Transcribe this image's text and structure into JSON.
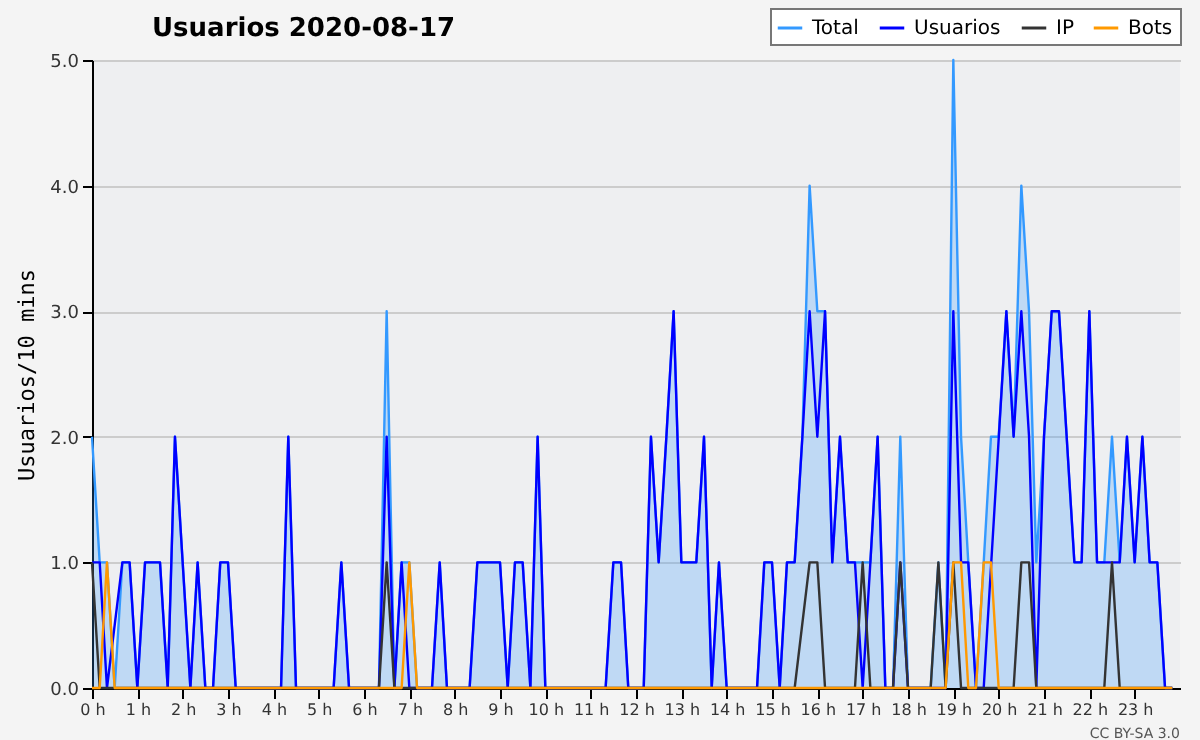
{
  "chart_data": {
    "type": "line",
    "title": "Usuarios  2020-08-17",
    "ylabel": "Usuarios/10 mins",
    "annotations": [
      "CC BY-SA 3.0"
    ],
    "xlim": [
      0,
      24
    ],
    "ylim": [
      0,
      5
    ],
    "xticks": [
      {
        "value": 0,
        "label": "0 h"
      },
      {
        "value": 1,
        "label": "1 h"
      },
      {
        "value": 2,
        "label": "2 h"
      },
      {
        "value": 3,
        "label": "3 h"
      },
      {
        "value": 4,
        "label": "4 h"
      },
      {
        "value": 5,
        "label": "5 h"
      },
      {
        "value": 6,
        "label": "6 h"
      },
      {
        "value": 7,
        "label": "7 h"
      },
      {
        "value": 8,
        "label": "8 h"
      },
      {
        "value": 9,
        "label": "9 h"
      },
      {
        "value": 10,
        "label": "10 h"
      },
      {
        "value": 11,
        "label": "11 h"
      },
      {
        "value": 12,
        "label": "12 h"
      },
      {
        "value": 13,
        "label": "13 h"
      },
      {
        "value": 14,
        "label": "14 h"
      },
      {
        "value": 15,
        "label": "15 h"
      },
      {
        "value": 16,
        "label": "16 h"
      },
      {
        "value": 17,
        "label": "17 h"
      },
      {
        "value": 18,
        "label": "18 h"
      },
      {
        "value": 19,
        "label": "19 h"
      },
      {
        "value": 20,
        "label": "20 h"
      },
      {
        "value": 21,
        "label": "21 h"
      },
      {
        "value": 22,
        "label": "22 h"
      },
      {
        "value": 23,
        "label": "23 h"
      }
    ],
    "yticks": [
      {
        "value": 0,
        "label": "0.0"
      },
      {
        "value": 1,
        "label": "1.0"
      },
      {
        "value": 2,
        "label": "2.0"
      },
      {
        "value": 3,
        "label": "3.0"
      },
      {
        "value": 4,
        "label": "4.0"
      },
      {
        "value": 5,
        "label": "5.0"
      }
    ],
    "grid": "y",
    "legend": "top right",
    "line_style": "solid",
    "series": [
      {
        "name": "Total",
        "type": "area",
        "color": "#3399ff",
        "x": [
          0,
          0.17,
          0.33,
          0.5,
          0.67,
          0.83,
          1,
          1.17,
          1.5,
          1.67,
          1.83,
          2.17,
          2.33,
          2.5,
          2.67,
          2.83,
          3,
          3.17,
          4.17,
          4.33,
          4.5,
          5.33,
          5.5,
          5.67,
          6.33,
          6.5,
          6.67,
          6.83,
          7,
          7.17,
          7.5,
          7.67,
          7.83,
          8.33,
          8.5,
          9,
          9.17,
          9.33,
          9.5,
          9.67,
          9.83,
          10,
          11.33,
          11.5,
          11.67,
          11.83,
          12.17,
          12.33,
          12.5,
          12.67,
          12.83,
          13,
          13.33,
          13.5,
          13.67,
          13.83,
          14,
          14.67,
          14.83,
          15,
          15.17,
          15.33,
          15.5,
          15.67,
          15.83,
          16,
          16.17,
          16.33,
          16.5,
          16.67,
          16.83,
          17,
          17.17,
          17.33,
          17.5,
          17.67,
          17.83,
          18,
          18.5,
          18.67,
          18.83,
          19,
          19.17,
          19.33,
          19.5,
          19.67,
          19.83,
          20,
          20.17,
          20.33,
          20.5,
          20.67,
          20.83,
          21,
          21.17,
          21.33,
          21.5,
          21.67,
          21.83,
          22,
          22.17,
          22.33,
          22.5,
          22.67,
          22.83,
          23,
          23.17,
          23.33,
          23.5,
          23.67,
          23.83
        ],
        "values": [
          2,
          1,
          1,
          0,
          1,
          1,
          0,
          1,
          1,
          0,
          2,
          0,
          1,
          0,
          0,
          1,
          1,
          0,
          0,
          2,
          0,
          0,
          1,
          0,
          0,
          3,
          0,
          1,
          1,
          0,
          0,
          1,
          0,
          0,
          1,
          1,
          0,
          1,
          1,
          0,
          2,
          0,
          0,
          1,
          1,
          0,
          0,
          2,
          1,
          2,
          3,
          1,
          1,
          2,
          0,
          1,
          0,
          0,
          1,
          1,
          0,
          1,
          1,
          2,
          4,
          3,
          3,
          1,
          2,
          1,
          1,
          1,
          1,
          2,
          0,
          0,
          2,
          0,
          0,
          1,
          0,
          5,
          2,
          1,
          0,
          1,
          2,
          2,
          3,
          2,
          4,
          3,
          1,
          2,
          3,
          3,
          2,
          1,
          1,
          3,
          1,
          1,
          2,
          1,
          2,
          1,
          2,
          1,
          1,
          0,
          0
        ]
      },
      {
        "name": "Usuarios",
        "color": "#0000ff",
        "x": [
          0,
          0.17,
          0.33,
          0.67,
          0.83,
          1,
          1.17,
          1.5,
          1.67,
          1.83,
          2.17,
          2.33,
          2.5,
          2.67,
          2.83,
          3,
          3.17,
          4.17,
          4.33,
          4.5,
          5.33,
          5.5,
          5.67,
          6.33,
          6.5,
          6.67,
          6.83,
          7,
          7.5,
          7.67,
          7.83,
          8.33,
          8.5,
          9,
          9.17,
          9.33,
          9.5,
          9.67,
          9.83,
          10,
          11.33,
          11.5,
          11.67,
          11.83,
          12.17,
          12.33,
          12.5,
          12.67,
          12.83,
          13,
          13.33,
          13.5,
          13.67,
          13.83,
          14,
          14.67,
          14.83,
          15,
          15.17,
          15.33,
          15.5,
          15.67,
          15.83,
          16,
          16.17,
          16.33,
          16.5,
          16.67,
          16.83,
          17,
          17.17,
          17.33,
          17.5,
          17.67,
          17.83,
          18,
          18.83,
          19,
          19.17,
          19.33,
          19.5,
          19.67,
          20.17,
          20.33,
          20.5,
          20.67,
          20.83,
          21,
          21.17,
          21.33,
          21.5,
          21.67,
          21.83,
          22,
          22.17,
          22.67,
          22.83,
          23,
          23.17,
          23.33,
          23.5,
          23.67,
          23.83
        ],
        "values": [
          1,
          1,
          0,
          1,
          1,
          0,
          1,
          1,
          0,
          2,
          0,
          1,
          0,
          0,
          1,
          1,
          0,
          0,
          2,
          0,
          0,
          1,
          0,
          0,
          2,
          0,
          1,
          0,
          0,
          1,
          0,
          0,
          1,
          1,
          0,
          1,
          1,
          0,
          2,
          0,
          0,
          1,
          1,
          0,
          0,
          2,
          1,
          2,
          3,
          1,
          1,
          2,
          0,
          1,
          0,
          0,
          1,
          1,
          0,
          1,
          1,
          2,
          3,
          2,
          3,
          1,
          2,
          1,
          1,
          0,
          1,
          2,
          0,
          0,
          1,
          0,
          0,
          3,
          1,
          1,
          0,
          0,
          3,
          2,
          3,
          2,
          0,
          2,
          3,
          3,
          2,
          1,
          1,
          3,
          1,
          1,
          2,
          1,
          2,
          1,
          1,
          0,
          0
        ]
      },
      {
        "name": "IP",
        "color": "#333333",
        "x": [
          0,
          0.17,
          6.33,
          6.5,
          6.67,
          15.5,
          15.83,
          16,
          16.17,
          16.83,
          17,
          17.17,
          17.67,
          17.83,
          18,
          18.5,
          18.67,
          18.83,
          19,
          19.17,
          20.33,
          20.5,
          20.67,
          20.83,
          22.33,
          22.5,
          22.67,
          23.83
        ],
        "values": [
          1,
          0,
          0,
          1,
          0,
          0,
          1,
          1,
          0,
          0,
          1,
          0,
          0,
          1,
          0,
          0,
          1,
          0,
          1,
          0,
          0,
          1,
          1,
          0,
          0,
          1,
          0,
          0
        ]
      },
      {
        "name": "Bots",
        "color": "#ff9900",
        "x": [
          0,
          0.17,
          0.33,
          0.5,
          6.83,
          7,
          7.17,
          18.83,
          19,
          19.17,
          19.33,
          19.5,
          19.67,
          19.83,
          20,
          23.83
        ],
        "values": [
          0,
          0,
          1,
          0,
          0,
          1,
          0,
          0,
          1,
          1,
          0,
          0,
          1,
          1,
          0,
          0
        ]
      }
    ]
  }
}
